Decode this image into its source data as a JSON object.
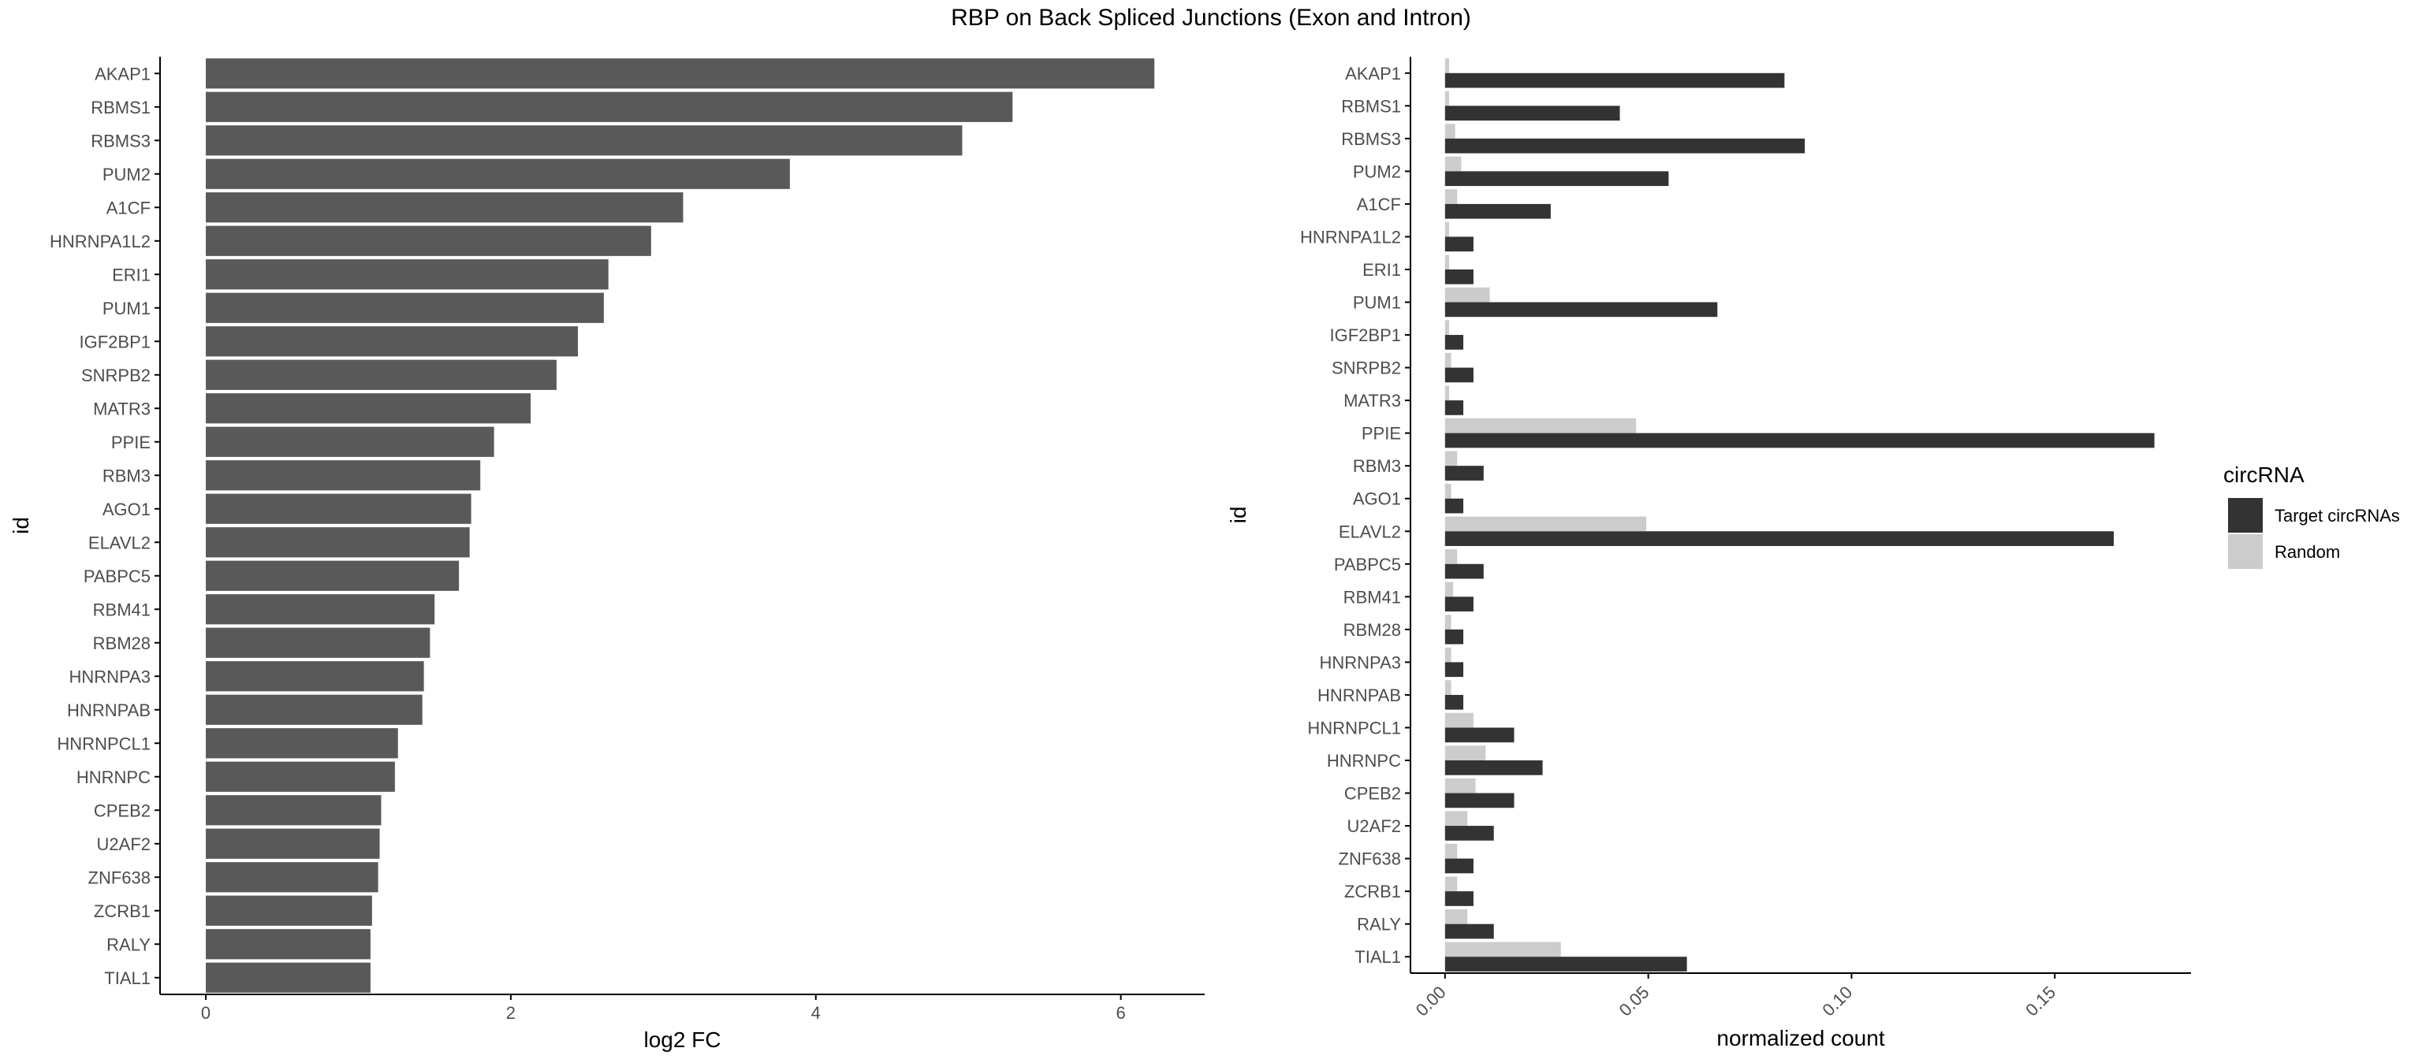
{
  "figure": {
    "title": "RBP on Back Spliced Junctions (Exon and Intron)"
  },
  "colors": {
    "bar": "#595959",
    "target": "#333333",
    "random": "#cccccc",
    "axis": "#000000",
    "text": "#4d4d4d"
  },
  "legend": {
    "title": "circRNA",
    "placement": "right",
    "items": [
      {
        "label": "Target circRNAs",
        "color": "#333333"
      },
      {
        "label": "Random",
        "color": "#cccccc"
      }
    ]
  },
  "chart_data": [
    {
      "type": "bar",
      "orientation": "horizontal",
      "title": "",
      "xlabel": "log2 FC",
      "ylabel": "id",
      "xlim": [
        -0.3,
        6.55
      ],
      "xticks": [
        0,
        2,
        4,
        6
      ],
      "grid": false,
      "categories": [
        "AKAP1",
        "RBMS1",
        "RBMS3",
        "PUM2",
        "A1CF",
        "HNRNPA1L2",
        "ERI1",
        "PUM1",
        "IGF2BP1",
        "SNRPB2",
        "MATR3",
        "PPIE",
        "RBM3",
        "AGO1",
        "ELAVL2",
        "PABPC5",
        "RBM41",
        "RBM28",
        "HNRNPA3",
        "HNRNPAB",
        "HNRNPCL1",
        "HNRNPC",
        "CPEB2",
        "U2AF2",
        "ZNF638",
        "ZCRB1",
        "RALY",
        "TIAL1"
      ],
      "values": [
        6.22,
        5.29,
        4.96,
        3.83,
        3.13,
        2.92,
        2.64,
        2.61,
        2.44,
        2.3,
        2.13,
        1.89,
        1.8,
        1.74,
        1.73,
        1.66,
        1.5,
        1.47,
        1.43,
        1.42,
        1.26,
        1.24,
        1.15,
        1.14,
        1.13,
        1.09,
        1.08,
        1.08
      ]
    },
    {
      "type": "bar",
      "orientation": "horizontal",
      "grouped": true,
      "title": "",
      "xlabel": "normalized count",
      "ylabel": "id",
      "xlim": [
        -0.0085,
        0.1835
      ],
      "xticks": [
        0.0,
        0.05,
        0.1,
        0.15
      ],
      "xtick_labels": [
        "0.00",
        "0.05",
        "0.10",
        "0.15"
      ],
      "grid": false,
      "categories": [
        "AKAP1",
        "RBMS1",
        "RBMS3",
        "PUM2",
        "A1CF",
        "HNRNPA1L2",
        "ERI1",
        "PUM1",
        "IGF2BP1",
        "SNRPB2",
        "MATR3",
        "PPIE",
        "RBM3",
        "AGO1",
        "ELAVL2",
        "PABPC5",
        "RBM41",
        "RBM28",
        "HNRNPA3",
        "HNRNPAB",
        "HNRNPCL1",
        "HNRNPC",
        "CPEB2",
        "U2AF2",
        "ZNF638",
        "ZCRB1",
        "RALY",
        "TIAL1"
      ],
      "series": [
        {
          "name": "Target circRNAs",
          "values": [
            0.0835,
            0.043,
            0.0885,
            0.055,
            0.026,
            0.007,
            0.007,
            0.067,
            0.0045,
            0.007,
            0.0045,
            0.1745,
            0.0095,
            0.0045,
            0.1645,
            0.0095,
            0.007,
            0.0045,
            0.0045,
            0.0045,
            0.017,
            0.024,
            0.017,
            0.012,
            0.007,
            0.007,
            0.012,
            0.0595
          ]
        },
        {
          "name": "Random",
          "values": [
            0.001,
            0.001,
            0.0025,
            0.004,
            0.003,
            0.001,
            0.001,
            0.011,
            0.001,
            0.0015,
            0.001,
            0.047,
            0.003,
            0.0015,
            0.0495,
            0.003,
            0.002,
            0.0015,
            0.0015,
            0.0015,
            0.007,
            0.01,
            0.0075,
            0.0055,
            0.003,
            0.003,
            0.0055,
            0.0285
          ]
        }
      ]
    }
  ]
}
